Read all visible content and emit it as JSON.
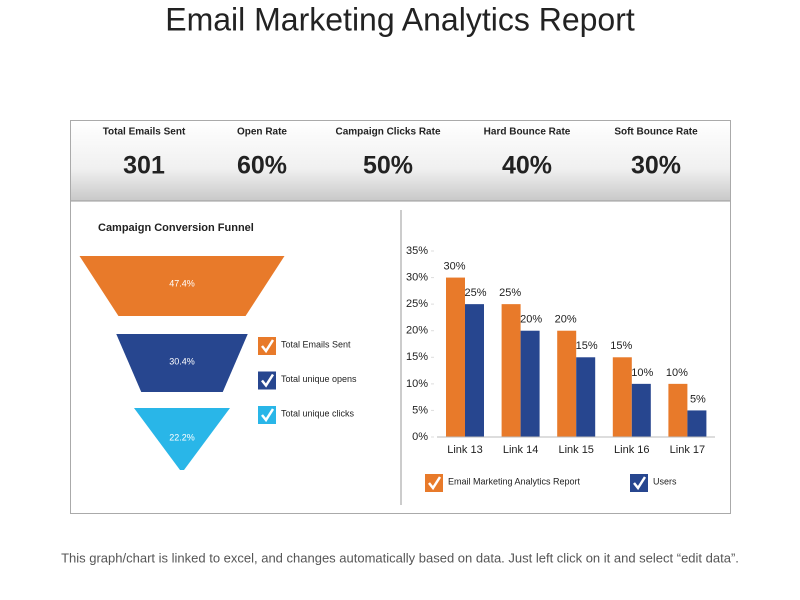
{
  "title": "Email Marketing Analytics Report",
  "kpis": [
    {
      "label": "Total Emails Sent",
      "value": "301"
    },
    {
      "label": "Open Rate",
      "value": "60%"
    },
    {
      "label": "Campaign Clicks Rate",
      "value": "50%"
    },
    {
      "label": "Hard Bounce Rate",
      "value": "40%"
    },
    {
      "label": "Soft  Bounce Rate",
      "value": "30%"
    }
  ],
  "chart_data": [
    {
      "type": "funnel",
      "title": "Campaign Conversion Funnel",
      "categories": [
        "Total Emails Sent",
        "Total unique opens",
        "Total unique clicks"
      ],
      "values": [
        47.4,
        30.4,
        22.2
      ],
      "value_labels": [
        "47.4%",
        "30.4%",
        "22.2%"
      ],
      "colors": [
        "#e87a2a",
        "#27468f",
        "#29b6e8"
      ]
    },
    {
      "type": "bar",
      "categories": [
        "Link 13",
        "Link 14",
        "Link 15",
        "Link 16",
        "Link 17"
      ],
      "series": [
        {
          "name": "Email  Marketing  Analytics Report",
          "color": "#e87a2a",
          "values": [
            30,
            25,
            20,
            15,
            10
          ],
          "value_labels": [
            "30%",
            "25%",
            "20%",
            "15%",
            "10%"
          ]
        },
        {
          "name": "Users",
          "color": "#27468f",
          "values": [
            25,
            20,
            15,
            10,
            5
          ],
          "value_labels": [
            "25%",
            "20%",
            "15%",
            "10%",
            "5%"
          ]
        }
      ],
      "ylim": [
        0,
        35
      ],
      "yticks": [
        {
          "value": 0,
          "label": "0%"
        },
        {
          "value": 5,
          "label": "5%"
        },
        {
          "value": 10,
          "label": "10%"
        },
        {
          "value": 15,
          "label": "15%"
        },
        {
          "value": 20,
          "label": "20%"
        },
        {
          "value": 25,
          "label": "25%"
        },
        {
          "value": 30,
          "label": "30%"
        },
        {
          "value": 35,
          "label": "35%"
        }
      ],
      "grid": false
    }
  ],
  "footer": "This graph/chart is linked to excel, and changes automatically based on data. Just left click on it and select “edit data”."
}
